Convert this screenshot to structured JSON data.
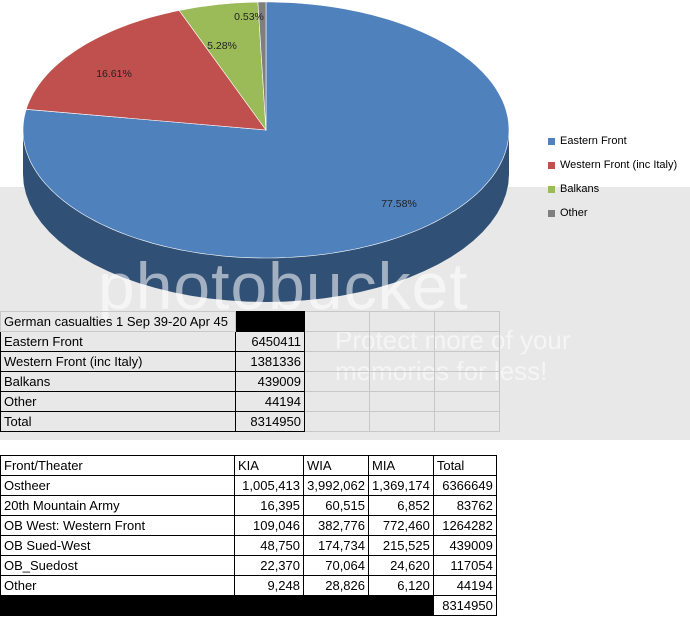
{
  "chart_data": {
    "type": "pie",
    "slices": [
      {
        "label": "Eastern Front",
        "value": 77.58,
        "color": "#4f81bd",
        "pct_label": "77.58%"
      },
      {
        "label": "Western Front (inc Italy)",
        "value": 16.61,
        "color": "#c0504d",
        "pct_label": "16.61%"
      },
      {
        "label": "Balkans",
        "value": 5.28,
        "color": "#9bbb59",
        "pct_label": "5.28%"
      },
      {
        "label": "Other",
        "value": 0.53,
        "color": "#7f7f7f",
        "pct_label": "0.53%"
      }
    ],
    "legend_position": "right",
    "three_d": true
  },
  "watermark": {
    "main": "photobucket",
    "sub": "Protect more of your memories for less!"
  },
  "summary_table": {
    "title": "German casualties 1 Sep 39-20 Apr 45",
    "rows": [
      {
        "label": "Eastern Front",
        "value": "6450411"
      },
      {
        "label": "Western Front (inc Italy)",
        "value": "1381336"
      },
      {
        "label": "Balkans",
        "value": "439009"
      },
      {
        "label": "Other",
        "value": "44194"
      },
      {
        "label": "Total",
        "value": "8314950"
      }
    ]
  },
  "detail_table": {
    "headers": [
      "Front/Theater",
      "KIA",
      "WIA",
      "MIA",
      "Total"
    ],
    "rows": [
      [
        "Ostheer",
        "1,005,413",
        "3,992,062",
        "1,369,174",
        "6366649"
      ],
      [
        "20th Mountain Army",
        "16,395",
        "60,515",
        "6,852",
        "83762"
      ],
      [
        "OB West: Western Front",
        "109,046",
        "382,776",
        "772,460",
        "1264282"
      ],
      [
        "OB Sued-West",
        "48,750",
        "174,734",
        "215,525",
        "439009"
      ],
      [
        "OB_Suedost",
        "22,370",
        "70,064",
        "24,620",
        "117054"
      ],
      [
        "Other",
        "9,248",
        "28,826",
        "6,120",
        "44194"
      ]
    ],
    "grand_total": "8314950"
  }
}
